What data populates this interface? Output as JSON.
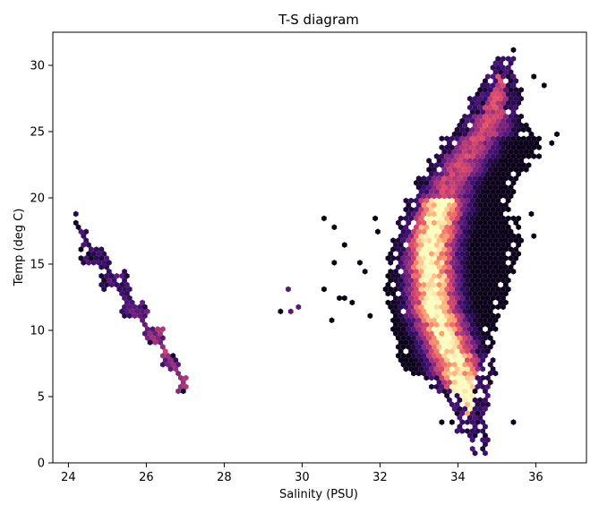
{
  "chart_data": {
    "type": "hexbin",
    "title": "T-S diagram",
    "xlabel": "Salinity (PSU)",
    "ylabel": "Temp (deg C)",
    "xlim": [
      23.6,
      37.3
    ],
    "ylim": [
      0,
      32.5
    ],
    "xticks": [
      24,
      26,
      28,
      30,
      32,
      34,
      36
    ],
    "yticks": [
      0,
      5,
      10,
      15,
      20,
      25,
      30
    ],
    "grid": false,
    "colormap": "magma",
    "colormap_stops": [
      "#000004",
      "#3b0f70",
      "#8c2981",
      "#de4968",
      "#fe9f6d",
      "#fcfdbf"
    ],
    "clusters": [
      {
        "name": "",
        "line": [
          {
            "s": 24.2,
            "t": 18.2,
            "sigma_s": 0.06,
            "n": 2,
            "d": 0.05
          },
          {
            "s": 24.45,
            "t": 17.0,
            "sigma_s": 0.08,
            "n": 10,
            "d": 0.15
          },
          {
            "s": 24.7,
            "t": 15.6,
            "sigma_s": 0.35,
            "n": 36,
            "d": 0.15
          },
          {
            "s": 25.2,
            "t": 13.8,
            "sigma_s": 0.35,
            "n": 36,
            "d": 0.2
          },
          {
            "s": 25.7,
            "t": 11.6,
            "sigma_s": 0.3,
            "n": 34,
            "d": 0.28
          },
          {
            "s": 26.2,
            "t": 9.6,
            "sigma_s": 0.22,
            "n": 36,
            "d": 0.4
          },
          {
            "s": 26.6,
            "t": 7.8,
            "sigma_s": 0.18,
            "n": 32,
            "d": 0.45
          },
          {
            "s": 26.95,
            "t": 6.0,
            "sigma_s": 0.12,
            "n": 18,
            "d": 0.42
          }
        ]
      },
      {
        "name": "",
        "scatter": [
          {
            "s": 29.4,
            "t": 11.5
          },
          {
            "s": 29.6,
            "t": 13.1
          },
          {
            "s": 29.7,
            "t": 11.5
          },
          {
            "s": 29.9,
            "t": 11.8
          },
          {
            "s": 30.5,
            "t": 18.6
          },
          {
            "s": 30.6,
            "t": 13.1
          },
          {
            "s": 30.8,
            "t": 10.6
          },
          {
            "s": 30.8,
            "t": 17.9
          },
          {
            "s": 30.8,
            "t": 15.0
          },
          {
            "s": 30.9,
            "t": 12.5
          },
          {
            "s": 31.05,
            "t": 16.3
          },
          {
            "s": 31.1,
            "t": 12.4
          },
          {
            "s": 31.3,
            "t": 12.2
          },
          {
            "s": 31.5,
            "t": 15.2
          },
          {
            "s": 31.7,
            "t": 11.2
          },
          {
            "s": 31.6,
            "t": 14.6
          }
        ]
      },
      {
        "name": "",
        "columns": [
          {
            "t": 1.5,
            "lo": 34.45,
            "hi": 34.75,
            "peak": 34.55
          },
          {
            "t": 3,
            "lo": 34.05,
            "hi": 34.75,
            "peak": 34.45
          },
          {
            "t": 4.5,
            "lo": 33.9,
            "hi": 34.75,
            "peak": 34.3
          },
          {
            "t": 6,
            "lo": 33.55,
            "hi": 34.75,
            "peak": 34.15
          },
          {
            "t": 7.5,
            "lo": 32.6,
            "hi": 34.95,
            "peak": 34.0
          },
          {
            "t": 9,
            "lo": 32.5,
            "hi": 34.85,
            "peak": 33.8
          },
          {
            "t": 10.5,
            "lo": 32.4,
            "hi": 34.95,
            "peak": 33.6
          },
          {
            "t": 12,
            "lo": 32.3,
            "hi": 35.2,
            "peak": 33.4
          },
          {
            "t": 13.5,
            "lo": 32.2,
            "hi": 35.3,
            "peak": 33.35
          },
          {
            "t": 15,
            "lo": 32.2,
            "hi": 35.4,
            "peak": 33.3
          },
          {
            "t": 16.5,
            "lo": 32.3,
            "hi": 35.6,
            "peak": 33.3
          },
          {
            "t": 18,
            "lo": 32.5,
            "hi": 35.7,
            "peak": 33.4
          },
          {
            "t": 19.5,
            "lo": 32.6,
            "hi": 35.3,
            "peak": 33.5
          },
          {
            "t": 21,
            "lo": 32.9,
            "hi": 35.5,
            "peak": 33.7
          },
          {
            "t": 22.5,
            "lo": 33.2,
            "hi": 35.7,
            "peak": 34.0
          },
          {
            "t": 24,
            "lo": 33.5,
            "hi": 36.2,
            "peak": 34.3
          },
          {
            "t": 25.5,
            "lo": 33.9,
            "hi": 35.9,
            "peak": 34.7
          },
          {
            "t": 27,
            "lo": 34.3,
            "hi": 35.6,
            "peak": 34.9
          },
          {
            "t": 28.5,
            "lo": 34.5,
            "hi": 35.6,
            "peak": 35.0
          },
          {
            "t": 30,
            "lo": 34.9,
            "hi": 35.5,
            "peak": 35.2
          }
        ],
        "outliers": [
          {
            "s": 35.4,
            "t": 31.1
          },
          {
            "s": 33.6,
            "t": 3.1
          },
          {
            "s": 33.8,
            "t": 3.1
          },
          {
            "s": 35.4,
            "t": 3.1
          },
          {
            "s": 36.6,
            "t": 24.7
          },
          {
            "s": 36.2,
            "t": 28.5
          },
          {
            "s": 36.0,
            "t": 29.2
          },
          {
            "s": 36.4,
            "t": 24.3
          },
          {
            "s": 35.9,
            "t": 18.8
          },
          {
            "s": 35.9,
            "t": 17.0
          },
          {
            "s": 31.9,
            "t": 18.5
          },
          {
            "s": 32.0,
            "t": 17.5
          }
        ]
      }
    ]
  }
}
